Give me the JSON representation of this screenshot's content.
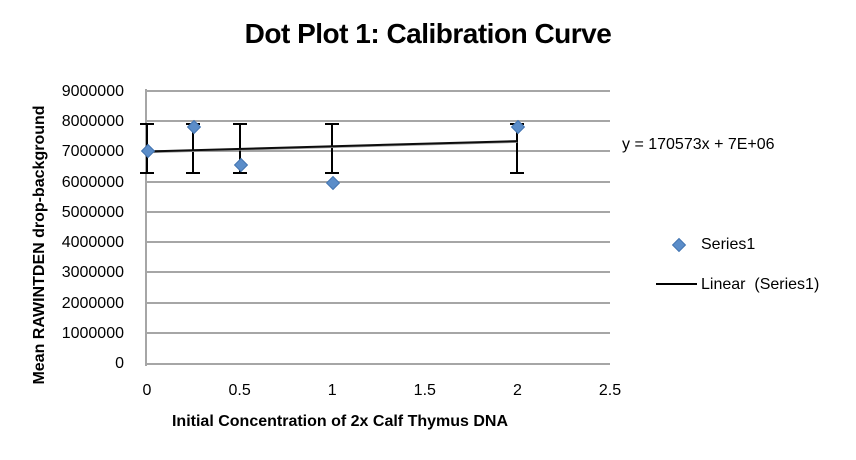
{
  "chart_data": {
    "type": "scatter",
    "title": "Dot Plot 1: Calibration Curve",
    "xlabel": "Initial Concentration of 2x Calf Thymus DNA",
    "ylabel": "Mean RAWINTDEN drop-background",
    "x": [
      0,
      0.25,
      0.5,
      1,
      2
    ],
    "y": [
      7050000,
      7850000,
      6600000,
      6000000,
      7850000
    ],
    "error_bars": {
      "high": 7900000,
      "low": 6300000
    },
    "xlim": [
      0,
      2.5
    ],
    "ylim": [
      0,
      9000000
    ],
    "x_ticks": [
      "0",
      "0.5",
      "1",
      "1.5",
      "2",
      "2.5"
    ],
    "y_ticks": [
      "9000000",
      "8000000",
      "7000000",
      "6000000",
      "5000000",
      "4000000",
      "3000000",
      "2000000",
      "1000000",
      "0"
    ],
    "grid": "horizontal",
    "legend_position": "right",
    "trendline": {
      "slope": 170573,
      "intercept": 7000000,
      "x_start": 0,
      "x_end": 2,
      "equation": "y = 170573x + 7E+06"
    },
    "legend": [
      {
        "label": "Series1",
        "marker": "diamond"
      },
      {
        "label": "Linear  (Series1)",
        "marker": "line"
      }
    ],
    "colors": {
      "marker_fill": "#5B8DC9",
      "marker_border": "#4677B2",
      "gridline": "#A6A6A6",
      "axis": "#A6A6A6",
      "trendline": "#0d0d0d",
      "text": "#000000"
    }
  }
}
